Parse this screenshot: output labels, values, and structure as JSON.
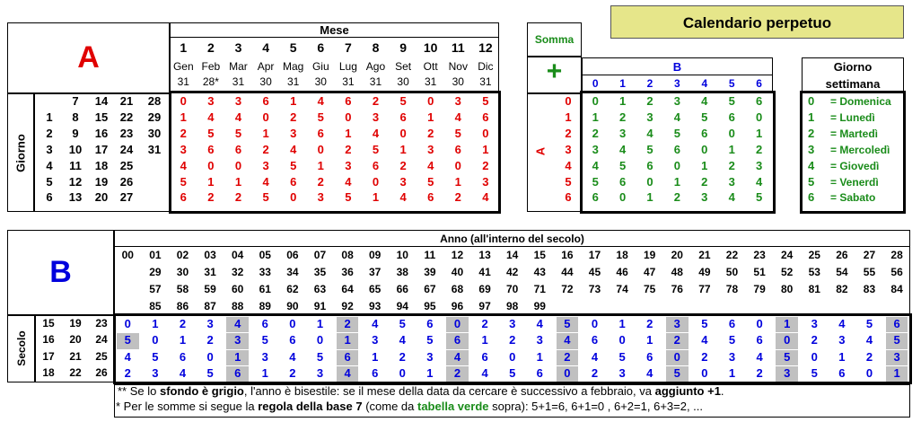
{
  "title": "Calendario perpetuo",
  "tableA": {
    "letter": "A",
    "mese_label": "Mese",
    "giorno_label": "Giorno",
    "months": [
      {
        "n": "1",
        "name": "Gen",
        "days": "31"
      },
      {
        "n": "2",
        "name": "Feb",
        "days": "28*"
      },
      {
        "n": "3",
        "name": "Mar",
        "days": "31"
      },
      {
        "n": "4",
        "name": "Apr",
        "days": "30"
      },
      {
        "n": "5",
        "name": "Mag",
        "days": "31"
      },
      {
        "n": "6",
        "name": "Giu",
        "days": "30"
      },
      {
        "n": "7",
        "name": "Lug",
        "days": "31"
      },
      {
        "n": "8",
        "name": "Ago",
        "days": "31"
      },
      {
        "n": "9",
        "name": "Set",
        "days": "30"
      },
      {
        "n": "10",
        "name": "Ott",
        "days": "31"
      },
      {
        "n": "11",
        "name": "Nov",
        "days": "30"
      },
      {
        "n": "12",
        "name": "Dic",
        "days": "31"
      }
    ],
    "day_rows": [
      [
        "",
        "7",
        "14",
        "21",
        "28"
      ],
      [
        "1",
        "8",
        "15",
        "22",
        "29"
      ],
      [
        "2",
        "9",
        "16",
        "23",
        "30"
      ],
      [
        "3",
        "10",
        "17",
        "24",
        "31"
      ],
      [
        "4",
        "11",
        "18",
        "25",
        ""
      ],
      [
        "5",
        "12",
        "19",
        "26",
        ""
      ],
      [
        "6",
        "13",
        "20",
        "27",
        ""
      ]
    ],
    "values": [
      [
        "0",
        "3",
        "3",
        "6",
        "1",
        "4",
        "6",
        "2",
        "5",
        "0",
        "3",
        "5"
      ],
      [
        "1",
        "4",
        "4",
        "0",
        "2",
        "5",
        "0",
        "3",
        "6",
        "1",
        "4",
        "6"
      ],
      [
        "2",
        "5",
        "5",
        "1",
        "3",
        "6",
        "1",
        "4",
        "0",
        "2",
        "5",
        "0"
      ],
      [
        "3",
        "6",
        "6",
        "2",
        "4",
        "0",
        "2",
        "5",
        "1",
        "3",
        "6",
        "1"
      ],
      [
        "4",
        "0",
        "0",
        "3",
        "5",
        "1",
        "3",
        "6",
        "2",
        "4",
        "0",
        "2"
      ],
      [
        "5",
        "1",
        "1",
        "4",
        "6",
        "2",
        "4",
        "0",
        "3",
        "5",
        "1",
        "3"
      ],
      [
        "6",
        "2",
        "2",
        "5",
        "0",
        "3",
        "5",
        "1",
        "4",
        "6",
        "2",
        "4"
      ]
    ]
  },
  "somma": {
    "label": "Somma",
    "plus": "+",
    "b_label": "B",
    "a_label": "A",
    "cols": [
      "0",
      "1",
      "2",
      "3",
      "4",
      "5",
      "6"
    ],
    "rows": [
      "0",
      "1",
      "2",
      "3",
      "4",
      "5",
      "6"
    ],
    "values": [
      [
        "0",
        "1",
        "2",
        "3",
        "4",
        "5",
        "6"
      ],
      [
        "1",
        "2",
        "3",
        "4",
        "5",
        "6",
        "0"
      ],
      [
        "2",
        "3",
        "4",
        "5",
        "6",
        "0",
        "1"
      ],
      [
        "3",
        "4",
        "5",
        "6",
        "0",
        "1",
        "2"
      ],
      [
        "4",
        "5",
        "6",
        "0",
        "1",
        "2",
        "3"
      ],
      [
        "5",
        "6",
        "0",
        "1",
        "2",
        "3",
        "4"
      ],
      [
        "6",
        "0",
        "1",
        "2",
        "3",
        "4",
        "5"
      ]
    ]
  },
  "giorno_settimana": {
    "header_line1": "Giorno",
    "header_line2": "settimana",
    "rows": [
      {
        "n": "0",
        "name": "= Domenica"
      },
      {
        "n": "1",
        "name": "= Lunedì"
      },
      {
        "n": "2",
        "name": "= Martedì"
      },
      {
        "n": "3",
        "name": "= Mercoledì"
      },
      {
        "n": "4",
        "name": "= Giovedì"
      },
      {
        "n": "5",
        "name": "= Venerdì"
      },
      {
        "n": "6",
        "name": "= Sabato"
      }
    ]
  },
  "tableB": {
    "letter": "B",
    "anno_label": "Anno (all'interno del secolo)",
    "secolo_label": "Secolo",
    "year_rows": [
      [
        "00",
        "01",
        "02",
        "03",
        "04",
        "05",
        "06",
        "07",
        "08",
        "09",
        "10",
        "11",
        "12",
        "13",
        "14",
        "15",
        "16",
        "17",
        "18",
        "19",
        "20",
        "21",
        "22",
        "23",
        "24",
        "25",
        "26",
        "27",
        "28"
      ],
      [
        "",
        "29",
        "30",
        "31",
        "32",
        "33",
        "34",
        "35",
        "36",
        "37",
        "38",
        "39",
        "40",
        "41",
        "42",
        "43",
        "44",
        "45",
        "46",
        "47",
        "48",
        "49",
        "50",
        "51",
        "52",
        "53",
        "54",
        "55",
        "56"
      ],
      [
        "",
        "57",
        "58",
        "59",
        "60",
        "61",
        "62",
        "63",
        "64",
        "65",
        "66",
        "67",
        "68",
        "69",
        "70",
        "71",
        "72",
        "73",
        "74",
        "75",
        "76",
        "77",
        "78",
        "79",
        "80",
        "81",
        "82",
        "83",
        "84"
      ],
      [
        "",
        "85",
        "86",
        "87",
        "88",
        "89",
        "90",
        "91",
        "92",
        "93",
        "94",
        "95",
        "96",
        "97",
        "98",
        "99",
        "",
        "",
        "",
        "",
        "",
        "",
        "",
        "",
        "",
        "",
        "",
        "",
        ""
      ]
    ],
    "century_rows": [
      [
        "15",
        "19",
        "23"
      ],
      [
        "16",
        "20",
        "24"
      ],
      [
        "17",
        "21",
        "25"
      ],
      [
        "18",
        "22",
        "26"
      ]
    ],
    "values": [
      [
        "0",
        "1",
        "2",
        "3",
        "4",
        "6",
        "0",
        "1",
        "2",
        "4",
        "5",
        "6",
        "0",
        "2",
        "3",
        "4",
        "5",
        "0",
        "1",
        "2",
        "3",
        "5",
        "6",
        "0",
        "1",
        "3",
        "4",
        "5",
        "6"
      ],
      [
        "5",
        "0",
        "1",
        "2",
        "3",
        "5",
        "6",
        "0",
        "1",
        "3",
        "4",
        "5",
        "6",
        "1",
        "2",
        "3",
        "4",
        "6",
        "0",
        "1",
        "2",
        "4",
        "5",
        "6",
        "0",
        "2",
        "3",
        "4",
        "5"
      ],
      [
        "4",
        "5",
        "6",
        "0",
        "1",
        "3",
        "4",
        "5",
        "6",
        "1",
        "2",
        "3",
        "4",
        "6",
        "0",
        "1",
        "2",
        "4",
        "5",
        "6",
        "0",
        "2",
        "3",
        "4",
        "5",
        "0",
        "1",
        "2",
        "3"
      ],
      [
        "2",
        "3",
        "4",
        "5",
        "6",
        "1",
        "2",
        "3",
        "4",
        "6",
        "0",
        "1",
        "2",
        "4",
        "5",
        "6",
        "0",
        "2",
        "3",
        "4",
        "5",
        "0",
        "1",
        "2",
        "3",
        "5",
        "6",
        "0",
        "1"
      ]
    ]
  },
  "notes": {
    "line1_a": "** Se lo ",
    "line1_b": "sfondo è grigio",
    "line1_c": ", l'anno è bisestile: se il mese della data da cercare è successivo a febbraio, va ",
    "line1_d": "aggiunto +1",
    "line1_e": ".",
    "line2_a": "* Per le somme si segue la ",
    "line2_b": "regola della base 7",
    "line2_c": " (come da ",
    "line2_d": "tabella verde",
    "line2_e": " sopra):   5+1=6,   6+1=0 ,  6+2=1,     6+3=2,    ..."
  },
  "colors": {
    "red": "#e00000",
    "green": "#1a8c1a",
    "blue": "#0000dd",
    "title_bg": "#e6e68a",
    "gray": "#c0c0c0"
  }
}
